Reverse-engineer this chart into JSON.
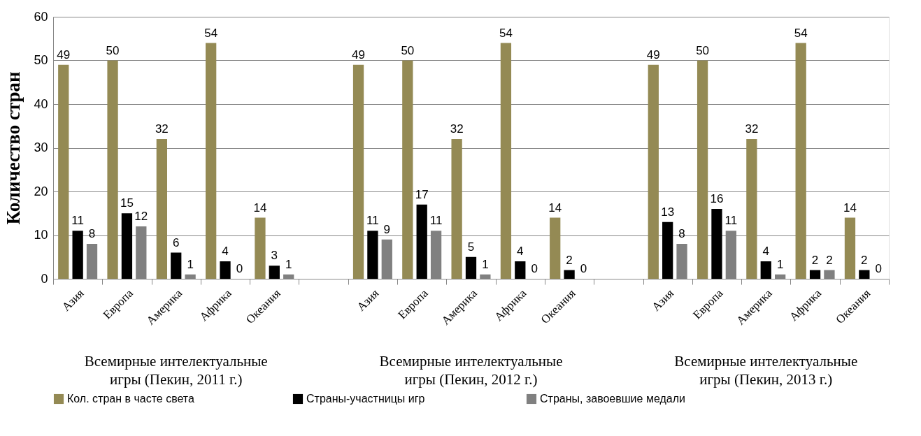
{
  "chart_data": {
    "type": "bar",
    "ylabel": "Количество стран",
    "categories": [
      "Азия",
      "Европа",
      "Америка",
      "Африка",
      "Океания",
      null,
      "Азия",
      "Европа",
      "Америка",
      "Африка",
      "Океания",
      null,
      "Азия",
      "Европа",
      "Америка",
      "Африка",
      "Океания"
    ],
    "series": [
      {
        "name": "Кол. стран в часте света",
        "color": "#948a54",
        "values": [
          49,
          50,
          32,
          54,
          14,
          null,
          49,
          50,
          32,
          54,
          14,
          null,
          49,
          50,
          32,
          54,
          14
        ]
      },
      {
        "name": "Страны-участницы  игр",
        "color": "#000000",
        "values": [
          11,
          15,
          6,
          4,
          3,
          null,
          11,
          17,
          5,
          4,
          2,
          null,
          13,
          16,
          4,
          2,
          2
        ]
      },
      {
        "name": "Страны, завоевшие медали",
        "color": "#808080",
        "values": [
          8,
          12,
          1,
          0,
          1,
          null,
          9,
          11,
          1,
          0,
          0,
          null,
          8,
          11,
          1,
          2,
          0
        ]
      }
    ],
    "annotations": [
      "Всемирные интелектуальные игры (Пекин, 2011 г.)",
      "Всемирные интелектуальные игры (Пекин, 2012 г.)",
      "Всемирные интелектуальные игры (Пекин, 2013 г.)"
    ],
    "ylim": [
      0,
      60
    ],
    "yticks": [
      0,
      10,
      20,
      30,
      40,
      50,
      60
    ],
    "grid": "y",
    "legend": "bottom",
    "data_labels": true
  }
}
